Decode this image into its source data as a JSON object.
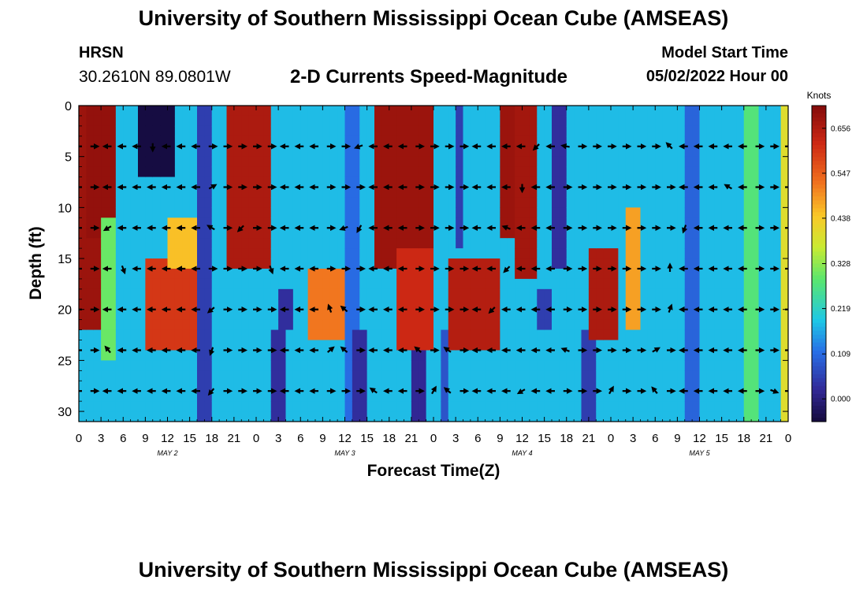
{
  "page": {
    "title": "University of Southern Mississippi Ocean Cube (AMSEAS)",
    "footer_title": "University of Southern Mississippi Ocean Cube (AMSEAS)",
    "station": "HRSN",
    "coords": "30.2610N  89.0801W",
    "subtitle": "2-D Currents Speed-Magnitude",
    "model_start_label": "Model Start Time",
    "model_start_value": "05/02/2022 Hour 00"
  },
  "chart_data": {
    "type": "heatmap",
    "title": "2-D Currents Speed-Magnitude",
    "xlabel": "Forecast Time(Z)",
    "ylabel": "Depth (ft)",
    "xlim": [
      0,
      96
    ],
    "ylim": [
      31,
      0
    ],
    "x_tick_values": [
      0,
      3,
      6,
      9,
      12,
      15,
      18,
      21,
      24,
      27,
      30,
      33,
      36,
      39,
      42,
      45,
      48,
      51,
      54,
      57,
      60,
      63,
      66,
      69,
      72,
      75,
      78,
      81,
      84,
      87,
      90,
      93,
      96
    ],
    "x_tick_labels": [
      "0",
      "3",
      "6",
      "9",
      "12",
      "15",
      "18",
      "21",
      "0",
      "3",
      "6",
      "9",
      "12",
      "15",
      "18",
      "21",
      "0",
      "3",
      "6",
      "9",
      "12",
      "15",
      "18",
      "21",
      "0",
      "3",
      "6",
      "9",
      "12",
      "15",
      "18",
      "21",
      "0"
    ],
    "day_labels": [
      {
        "x": 12,
        "label": "MAY 2"
      },
      {
        "x": 36,
        "label": "MAY 3"
      },
      {
        "x": 60,
        "label": "MAY 4"
      },
      {
        "x": 84,
        "label": "MAY 5"
      }
    ],
    "y_tick_values": [
      0,
      5,
      10,
      15,
      20,
      25,
      30
    ],
    "y_tick_labels": [
      "0",
      "5",
      "10",
      "15",
      "20",
      "25",
      "30"
    ],
    "colorbar": {
      "title": "Knots",
      "range": [
        -0.055,
        0.711
      ],
      "tick_values": [
        0.656,
        0.547,
        0.438,
        0.328,
        0.219,
        0.109,
        0.0
      ],
      "tick_labels": [
        "0.656",
        "0.547",
        "0.438",
        "0.328",
        "0.219",
        "0.109",
        "0.000"
      ]
    },
    "speed_features": [
      {
        "t0": 0.5,
        "t1": 3.5,
        "dTop": 0,
        "dBot": 22,
        "v": 0.68
      },
      {
        "t0": 1,
        "t1": 5,
        "dTop": 0,
        "dBot": 13,
        "v": 0.69
      },
      {
        "t0": 3.5,
        "t1": 5,
        "dTop": 11,
        "dBot": 25,
        "v": 0.3
      },
      {
        "t0": 8.5,
        "t1": 12.5,
        "dTop": 0,
        "dBot": 7,
        "v": -0.05
      },
      {
        "t0": 16.5,
        "t1": 17.8,
        "dTop": 0,
        "dBot": 31,
        "v": 0.05
      },
      {
        "t0": 9,
        "t1": 15.5,
        "dTop": 15.5,
        "dBot": 23.5,
        "v": 0.6
      },
      {
        "t0": 12.5,
        "t1": 15.5,
        "dTop": 11,
        "dBot": 16,
        "v": 0.45
      },
      {
        "t0": 20.5,
        "t1": 26,
        "dTop": 0,
        "dBot": 16,
        "v": 0.66
      },
      {
        "t0": 26.5,
        "t1": 27.5,
        "dTop": 22,
        "dBot": 31,
        "v": 0.03
      },
      {
        "t0": 27.5,
        "t1": 28.5,
        "dTop": 18,
        "dBot": 22,
        "v": 0.03
      },
      {
        "t0": 31,
        "t1": 36.5,
        "dTop": 16.5,
        "dBot": 23,
        "v": 0.52
      },
      {
        "t0": 36,
        "t1": 38,
        "dTop": 0,
        "dBot": 31,
        "v": 0.11
      },
      {
        "t0": 37.5,
        "t1": 38.5,
        "dTop": 22,
        "dBot": 31,
        "v": 0.03
      },
      {
        "t0": 40,
        "t1": 48,
        "dTop": 0,
        "dBot": 16,
        "v": 0.68
      },
      {
        "t0": 43,
        "t1": 48,
        "dTop": 14,
        "dBot": 24,
        "v": 0.62
      },
      {
        "t0": 45,
        "t1": 46.5,
        "dTop": 24,
        "dBot": 31,
        "v": 0.02
      },
      {
        "t0": 49,
        "t1": 50,
        "dTop": 22,
        "dBot": 31,
        "v": 0.08
      },
      {
        "t0": 50,
        "t1": 57,
        "dTop": 15,
        "dBot": 24,
        "v": 0.65
      },
      {
        "t0": 51,
        "t1": 52,
        "dTop": 0,
        "dBot": 14,
        "v": 0.05
      },
      {
        "t0": 57,
        "t1": 61,
        "dTop": 0,
        "dBot": 13,
        "v": 0.68
      },
      {
        "t0": 59,
        "t1": 62,
        "dTop": 0,
        "dBot": 17,
        "v": 0.67
      },
      {
        "t0": 62.5,
        "t1": 63.5,
        "dTop": 18,
        "dBot": 22,
        "v": 0.05
      },
      {
        "t0": 64,
        "t1": 66,
        "dTop": 0,
        "dBot": 16,
        "v": 0.03
      },
      {
        "t0": 68,
        "t1": 70,
        "dTop": 22,
        "dBot": 31,
        "v": 0.05
      },
      {
        "t0": 69,
        "t1": 72.5,
        "dTop": 14,
        "dBot": 23,
        "v": 0.66
      },
      {
        "t0": 74,
        "t1": 76,
        "dTop": 10,
        "dBot": 22,
        "v": 0.48
      },
      {
        "t0": 82,
        "t1": 83.5,
        "dTop": 0,
        "dBot": 31,
        "v": 0.1
      },
      {
        "t0": 90,
        "t1": 91.5,
        "dTop": 0,
        "dBot": 31,
        "v": 0.28
      },
      {
        "t0": 95,
        "t1": 96,
        "dTop": 0,
        "dBot": 31,
        "v": 0.4
      }
    ],
    "vector_times": [
      0,
      2,
      4,
      6,
      8,
      10,
      12,
      14,
      16,
      18,
      20,
      22,
      24,
      26,
      28,
      30,
      32,
      34,
      36,
      38,
      40,
      42,
      44,
      46,
      48,
      50,
      52,
      54,
      56,
      58,
      60,
      62,
      64,
      66,
      68,
      70,
      72,
      74,
      76,
      78,
      80,
      82,
      84,
      86,
      88,
      90,
      92,
      94,
      96
    ],
    "vector_depths": [
      4,
      8,
      12,
      16,
      20,
      24,
      28
    ],
    "vector_angles_deg": [
      [
        0,
        0,
        0,
        0,
        0,
        0,
        0,
        0,
        0,
        0,
        0,
        0,
        0,
        0,
        0,
        0,
        0,
        0,
        0,
        0,
        0,
        0,
        0,
        0,
        0,
        0,
        0,
        0,
        0,
        0,
        0,
        0,
        0,
        0,
        0,
        0,
        0,
        0,
        0,
        0,
        0,
        0,
        0,
        0,
        0,
        0,
        0,
        0,
        0
      ],
      [
        0,
        0,
        0,
        0,
        0,
        0,
        0,
        0,
        0,
        0,
        0,
        0,
        0,
        0,
        0,
        0,
        0,
        0,
        0,
        0,
        0,
        0,
        0,
        0,
        0,
        0,
        0,
        0,
        0,
        0,
        0,
        0,
        0,
        0,
        0,
        0,
        0,
        0,
        0,
        0,
        0,
        0,
        0,
        0,
        0,
        0,
        0,
        0,
        0
      ],
      [
        0,
        0,
        0,
        0,
        0,
        0,
        0,
        0,
        0,
        0,
        0,
        0,
        0,
        0,
        0,
        0,
        0,
        0,
        0,
        0,
        0,
        0,
        0,
        0,
        0,
        0,
        0,
        0,
        0,
        0,
        0,
        0,
        0,
        0,
        0,
        0,
        0,
        0,
        0,
        0,
        0,
        0,
        0,
        0,
        0,
        0,
        0,
        0,
        0
      ],
      [
        0,
        0,
        0,
        0,
        0,
        0,
        0,
        0,
        0,
        0,
        0,
        0,
        0,
        0,
        0,
        0,
        0,
        0,
        0,
        0,
        0,
        0,
        0,
        0,
        0,
        0,
        0,
        0,
        0,
        0,
        0,
        0,
        0,
        0,
        0,
        0,
        0,
        0,
        0,
        0,
        0,
        0,
        0,
        0,
        0,
        0,
        0,
        0,
        0
      ],
      [
        0,
        0,
        0,
        0,
        0,
        0,
        0,
        0,
        0,
        0,
        0,
        0,
        0,
        0,
        0,
        0,
        0,
        0,
        0,
        0,
        0,
        0,
        0,
        0,
        0,
        0,
        0,
        0,
        0,
        0,
        0,
        0,
        0,
        0,
        0,
        0,
        0,
        0,
        0,
        0,
        0,
        0,
        0,
        0,
        0,
        0,
        0,
        0,
        0
      ],
      [
        0,
        0,
        0,
        0,
        0,
        0,
        0,
        0,
        0,
        0,
        0,
        0,
        0,
        0,
        0,
        0,
        0,
        0,
        0,
        0,
        0,
        0,
        0,
        0,
        0,
        0,
        0,
        0,
        0,
        0,
        0,
        0,
        0,
        0,
        0,
        0,
        0,
        0,
        0,
        0,
        0,
        0,
        0,
        0,
        0,
        0,
        0,
        0,
        0
      ],
      [
        0,
        0,
        0,
        0,
        0,
        0,
        0,
        0,
        0,
        0,
        0,
        0,
        0,
        0,
        0,
        0,
        0,
        0,
        0,
        0,
        0,
        0,
        0,
        0,
        0,
        0,
        0,
        0,
        0,
        0,
        0,
        0,
        0,
        0,
        0,
        0,
        0,
        0,
        0,
        0,
        0,
        0,
        0,
        0,
        0,
        0,
        0,
        0,
        0
      ]
    ],
    "vector_base_angles_note": "angles in degrees, 0 = pointing right (east), 180 = pointing left (west); per-cell overrides below",
    "vector_direction_by_time": [
      180,
      0,
      180,
      180,
      180,
      180,
      180,
      180,
      180,
      0,
      0,
      0,
      0,
      0,
      180,
      180,
      180,
      0,
      0,
      0,
      180,
      180,
      180,
      0,
      0,
      0,
      0,
      180,
      180,
      180,
      180,
      180,
      180,
      0,
      0,
      0,
      0,
      0,
      0,
      0,
      0,
      180,
      180,
      180,
      180,
      180,
      0,
      0,
      0
    ],
    "vector_overrides": [
      {
        "i": 5,
        "d": 4,
        "a": 270
      },
      {
        "i": 12,
        "d": 4,
        "a": 0
      },
      {
        "i": 19,
        "d": 4,
        "a": 200
      },
      {
        "i": 31,
        "d": 4,
        "a": 225
      },
      {
        "i": 33,
        "d": 4,
        "a": 170
      },
      {
        "i": 40,
        "d": 4,
        "a": 135
      },
      {
        "i": 9,
        "d": 8,
        "a": 30
      },
      {
        "i": 30,
        "d": 8,
        "a": 270
      },
      {
        "i": 44,
        "d": 8,
        "a": 150
      },
      {
        "i": 2,
        "d": 12,
        "a": 210
      },
      {
        "i": 9,
        "d": 12,
        "a": 150
      },
      {
        "i": 11,
        "d": 12,
        "a": 225
      },
      {
        "i": 18,
        "d": 12,
        "a": 200
      },
      {
        "i": 19,
        "d": 12,
        "a": 240
      },
      {
        "i": 29,
        "d": 12,
        "a": 160
      },
      {
        "i": 41,
        "d": 12,
        "a": 250
      },
      {
        "i": 3,
        "d": 16,
        "a": 290
      },
      {
        "i": 13,
        "d": 16,
        "a": 290
      },
      {
        "i": 29,
        "d": 16,
        "a": 225
      },
      {
        "i": 40,
        "d": 16,
        "a": 90
      },
      {
        "i": 9,
        "d": 20,
        "a": 220
      },
      {
        "i": 17,
        "d": 20,
        "a": 110
      },
      {
        "i": 18,
        "d": 20,
        "a": 140
      },
      {
        "i": 28,
        "d": 20,
        "a": 225
      },
      {
        "i": 40,
        "d": 20,
        "a": 70
      },
      {
        "i": 2,
        "d": 24,
        "a": 130
      },
      {
        "i": 9,
        "d": 24,
        "a": 250
      },
      {
        "i": 17,
        "d": 24,
        "a": 40
      },
      {
        "i": 18,
        "d": 24,
        "a": 140
      },
      {
        "i": 23,
        "d": 24,
        "a": 140
      },
      {
        "i": 25,
        "d": 24,
        "a": 145
      },
      {
        "i": 33,
        "d": 24,
        "a": 160
      },
      {
        "i": 39,
        "d": 24,
        "a": 30
      },
      {
        "i": 9,
        "d": 28,
        "a": 230
      },
      {
        "i": 20,
        "d": 28,
        "a": 145
      },
      {
        "i": 24,
        "d": 28,
        "a": 60
      },
      {
        "i": 25,
        "d": 28,
        "a": 140
      },
      {
        "i": 30,
        "d": 28,
        "a": 210
      },
      {
        "i": 36,
        "d": 28,
        "a": 60
      },
      {
        "i": 39,
        "d": 28,
        "a": 130
      },
      {
        "i": 47,
        "d": 28,
        "a": 340
      }
    ]
  }
}
